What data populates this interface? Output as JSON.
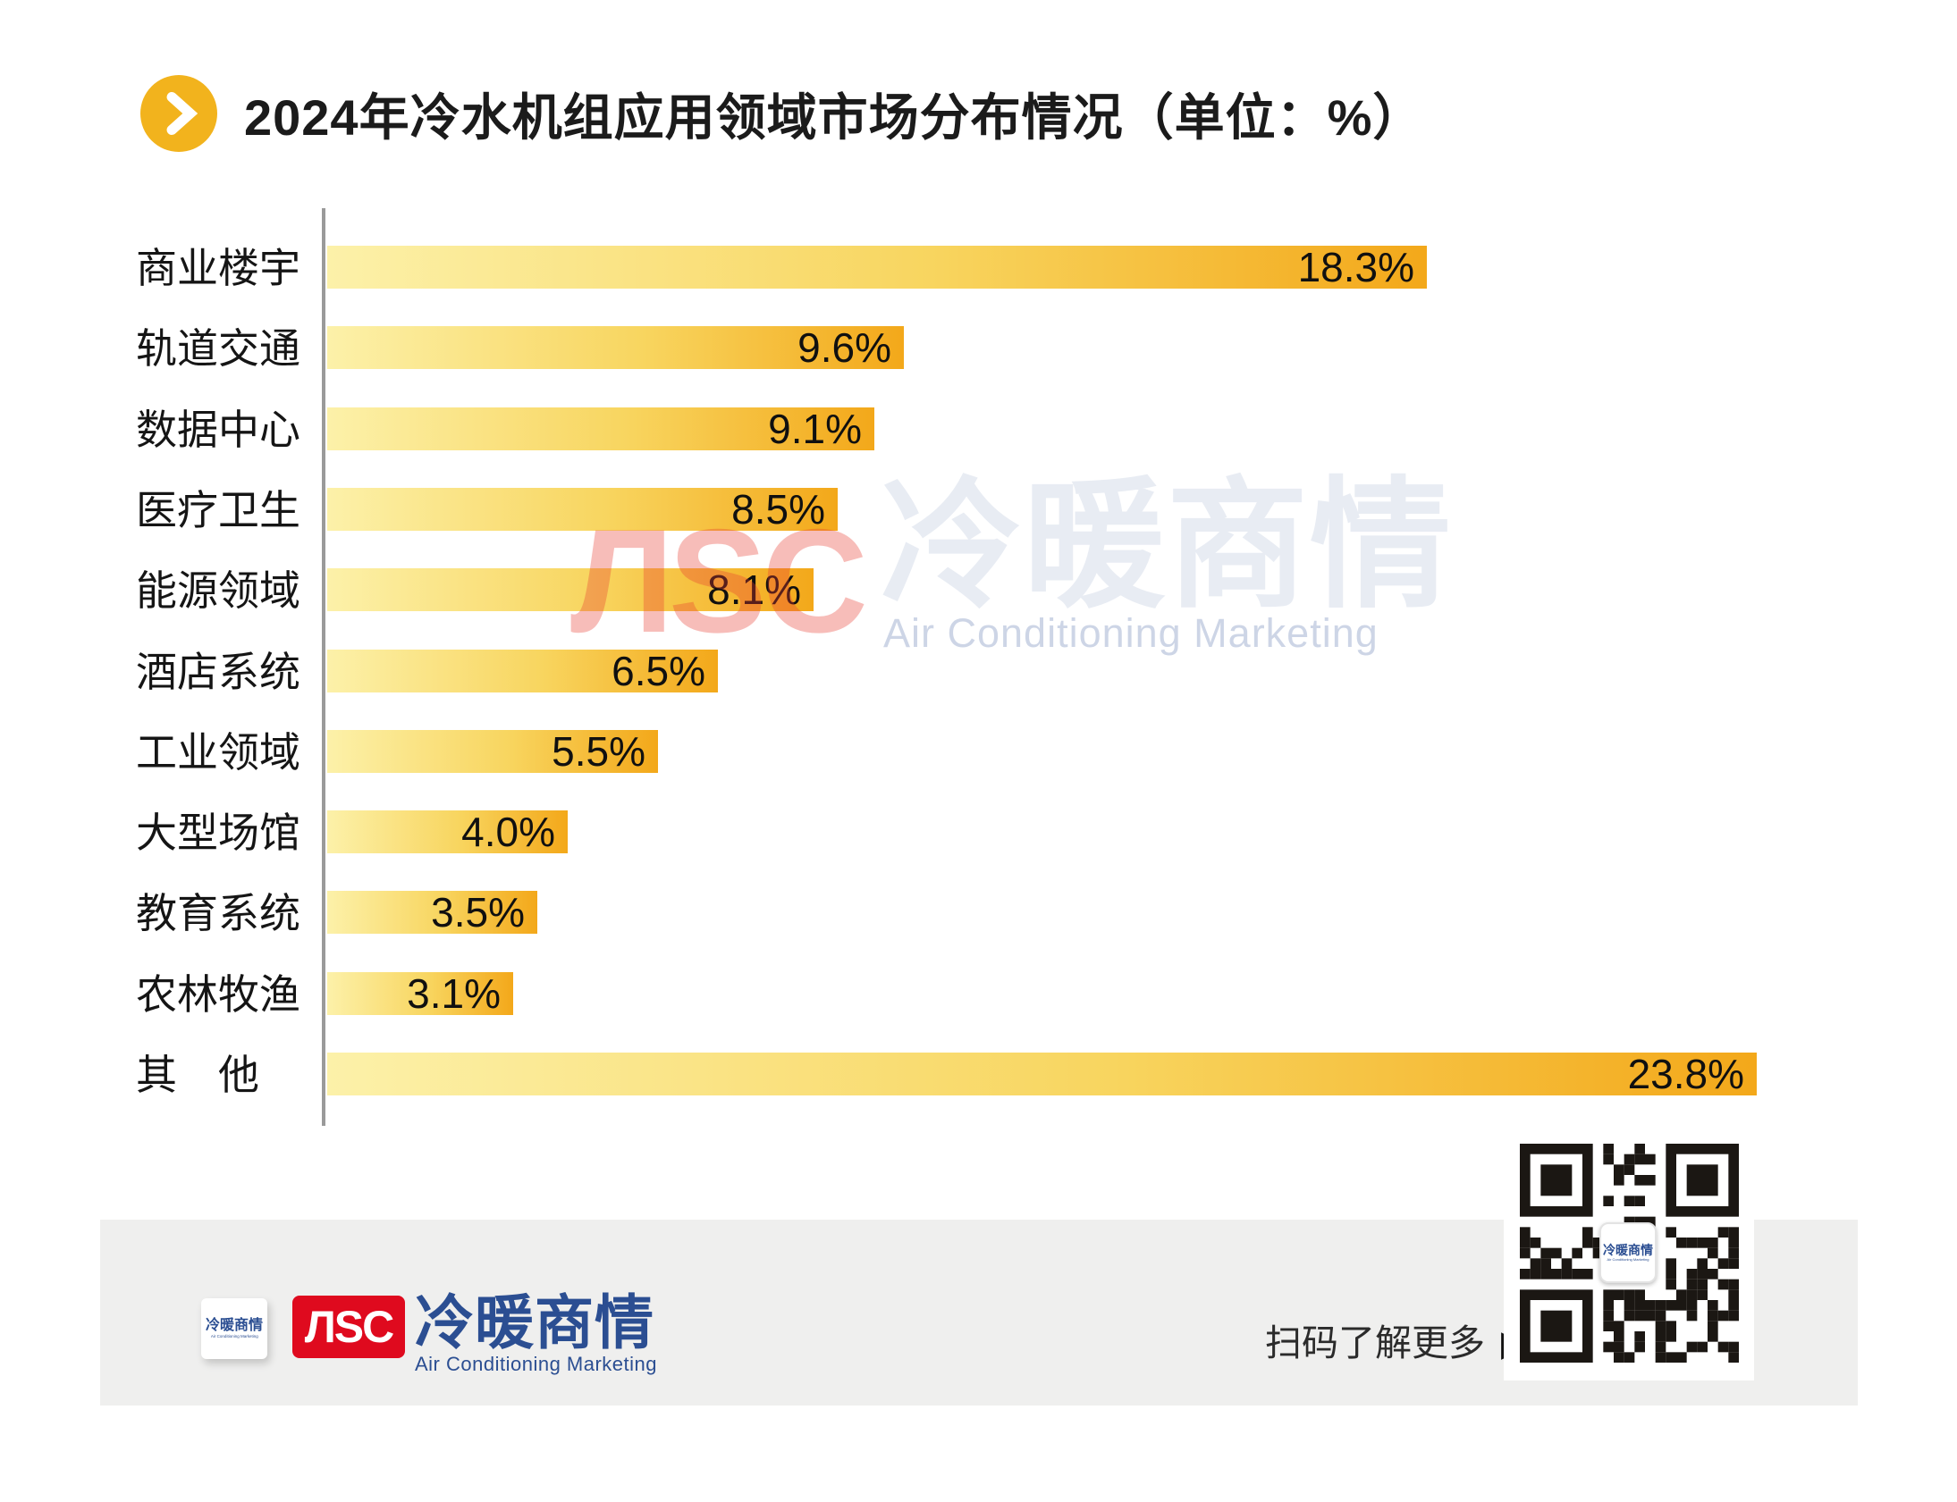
{
  "title": {
    "text": "2024年冷水机组应用领域市场分布情况（单位：%）"
  },
  "chart_data": {
    "type": "bar",
    "orientation": "horizontal",
    "title": "2024年冷水机组应用领域市场分布情况",
    "unit": "%",
    "categories": [
      "商业楼宇",
      "轨道交通",
      "数据中心",
      "医疗卫生",
      "能源领域",
      "酒店系统",
      "工业领域",
      "大型场馆",
      "教育系统",
      "农林牧渔",
      "其　他"
    ],
    "values": [
      18.3,
      9.6,
      9.1,
      8.5,
      8.1,
      6.5,
      5.5,
      4.0,
      3.5,
      3.1,
      23.8
    ],
    "value_labels": [
      "18.3%",
      "9.6%",
      "9.1%",
      "8.5%",
      "8.1%",
      "6.5%",
      "5.5%",
      "4.0%",
      "3.5%",
      "3.1%",
      "23.8%"
    ],
    "xlim": [
      0,
      25
    ],
    "grid": false,
    "legend": false,
    "value_label_position": "inside-end",
    "bar_color_start": "#FCF1A9",
    "bar_color_end": "#F3A81A",
    "axis_color": "#9A9A9A"
  },
  "watermark": {
    "logo": "ЛSC",
    "cn": "冷暖商情",
    "en": "Air Conditioning Marketing"
  },
  "footer": {
    "mini_card": {
      "cn": "冷暖商情",
      "sub": "Air Conditioning Marketing"
    },
    "logo_badge": "ЛSC",
    "brand_cn": "冷暖商情",
    "brand_en": "Air Conditioning Marketing",
    "scan_text": "扫码了解更多",
    "scan_arrow": "▶",
    "qr_center_label": "冷暖商情"
  },
  "colors": {
    "title_icon": "#F2B31D",
    "axis": "#9A9A9A",
    "brand_red": "#DF0A1E",
    "brand_blue": "#2B4E92",
    "footer_bg": "#EFEFEE",
    "text": "#111111"
  }
}
